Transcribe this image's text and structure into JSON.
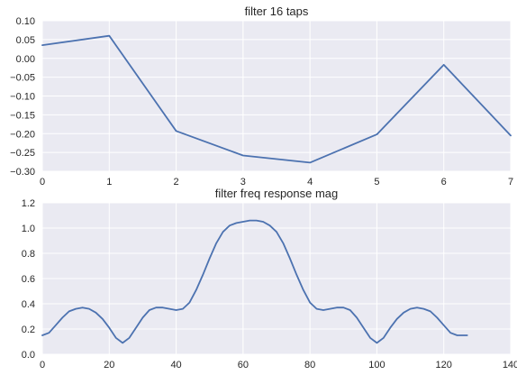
{
  "chart_data": [
    {
      "type": "line",
      "title": "filter 16 taps",
      "xlabel": "",
      "ylabel": "",
      "xlim": [
        0,
        7
      ],
      "ylim": [
        -0.3,
        0.1
      ],
      "grid": true,
      "x_ticks": [
        "0",
        "1",
        "2",
        "3",
        "4",
        "5",
        "6",
        "7"
      ],
      "y_ticks": [
        "0.10",
        "0.05",
        "0.00",
        "−0.05",
        "−0.10",
        "−0.15",
        "−0.20",
        "−0.25",
        "−0.30"
      ],
      "series": [
        {
          "color": "#4c72b0",
          "x": [
            0,
            1,
            2,
            3,
            4,
            5,
            6,
            7
          ],
          "y": [
            0.035,
            0.06,
            -0.193,
            -0.258,
            -0.277,
            -0.202,
            -0.017,
            -0.205
          ]
        }
      ]
    },
    {
      "type": "line",
      "title": "filter freq response mag",
      "xlabel": "",
      "ylabel": "",
      "xlim": [
        0,
        140
      ],
      "ylim": [
        0.0,
        1.2
      ],
      "grid": true,
      "x_ticks": [
        "0",
        "20",
        "40",
        "60",
        "80",
        "100",
        "120",
        "140"
      ],
      "y_ticks": [
        "1.2",
        "1.0",
        "0.8",
        "0.6",
        "0.4",
        "0.2",
        "0.0"
      ],
      "series": [
        {
          "color": "#4c72b0",
          "x": [
            0,
            2,
            4,
            6,
            8,
            10,
            12,
            14,
            16,
            18,
            20,
            22,
            24,
            26,
            28,
            30,
            32,
            34,
            36,
            38,
            40,
            42,
            44,
            46,
            48,
            50,
            52,
            54,
            56,
            58,
            60,
            62,
            64,
            66,
            68,
            70,
            72,
            74,
            76,
            78,
            80,
            82,
            84,
            86,
            88,
            90,
            92,
            94,
            96,
            98,
            100,
            102,
            104,
            106,
            108,
            110,
            112,
            114,
            116,
            118,
            120,
            122,
            124,
            126,
            127
          ],
          "y": [
            0.15,
            0.17,
            0.23,
            0.29,
            0.34,
            0.36,
            0.37,
            0.36,
            0.33,
            0.28,
            0.21,
            0.13,
            0.09,
            0.13,
            0.21,
            0.29,
            0.35,
            0.37,
            0.37,
            0.36,
            0.35,
            0.36,
            0.41,
            0.51,
            0.63,
            0.76,
            0.88,
            0.97,
            1.02,
            1.04,
            1.05,
            1.06,
            1.06,
            1.05,
            1.02,
            0.97,
            0.88,
            0.76,
            0.63,
            0.51,
            0.41,
            0.36,
            0.35,
            0.36,
            0.37,
            0.37,
            0.35,
            0.29,
            0.21,
            0.13,
            0.09,
            0.13,
            0.21,
            0.28,
            0.33,
            0.36,
            0.37,
            0.36,
            0.34,
            0.29,
            0.23,
            0.17,
            0.15,
            0.15,
            0.15
          ]
        }
      ]
    }
  ]
}
